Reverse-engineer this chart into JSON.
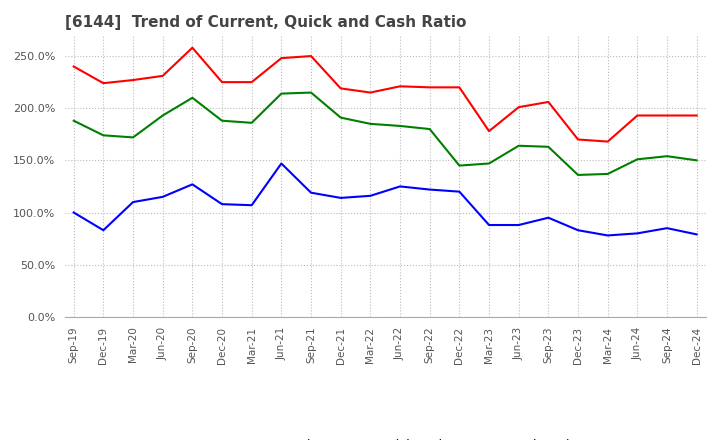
{
  "title": "[6144]  Trend of Current, Quick and Cash Ratio",
  "x_labels": [
    "Sep-19",
    "Dec-19",
    "Mar-20",
    "Jun-20",
    "Sep-20",
    "Dec-20",
    "Mar-21",
    "Jun-21",
    "Sep-21",
    "Dec-21",
    "Mar-22",
    "Jun-22",
    "Sep-22",
    "Dec-22",
    "Mar-23",
    "Jun-23",
    "Sep-23",
    "Dec-23",
    "Mar-24",
    "Jun-24",
    "Sep-24",
    "Dec-24"
  ],
  "current_ratio": [
    240,
    224,
    227,
    231,
    258,
    225,
    225,
    248,
    250,
    219,
    215,
    221,
    220,
    220,
    178,
    201,
    206,
    170,
    168,
    193,
    193,
    193
  ],
  "quick_ratio": [
    188,
    174,
    172,
    193,
    210,
    188,
    186,
    214,
    215,
    191,
    185,
    183,
    180,
    145,
    147,
    164,
    163,
    136,
    137,
    151,
    154,
    150
  ],
  "cash_ratio": [
    100,
    83,
    110,
    115,
    127,
    108,
    107,
    147,
    119,
    114,
    116,
    125,
    122,
    120,
    88,
    88,
    95,
    83,
    78,
    80,
    85,
    79
  ],
  "current_color": "#ff0000",
  "quick_color": "#008000",
  "cash_color": "#0000ff",
  "ylim": [
    0,
    270
  ],
  "yticks": [
    0,
    50,
    100,
    150,
    200,
    250
  ],
  "background_color": "#ffffff",
  "grid_color": "#bbbbbb"
}
